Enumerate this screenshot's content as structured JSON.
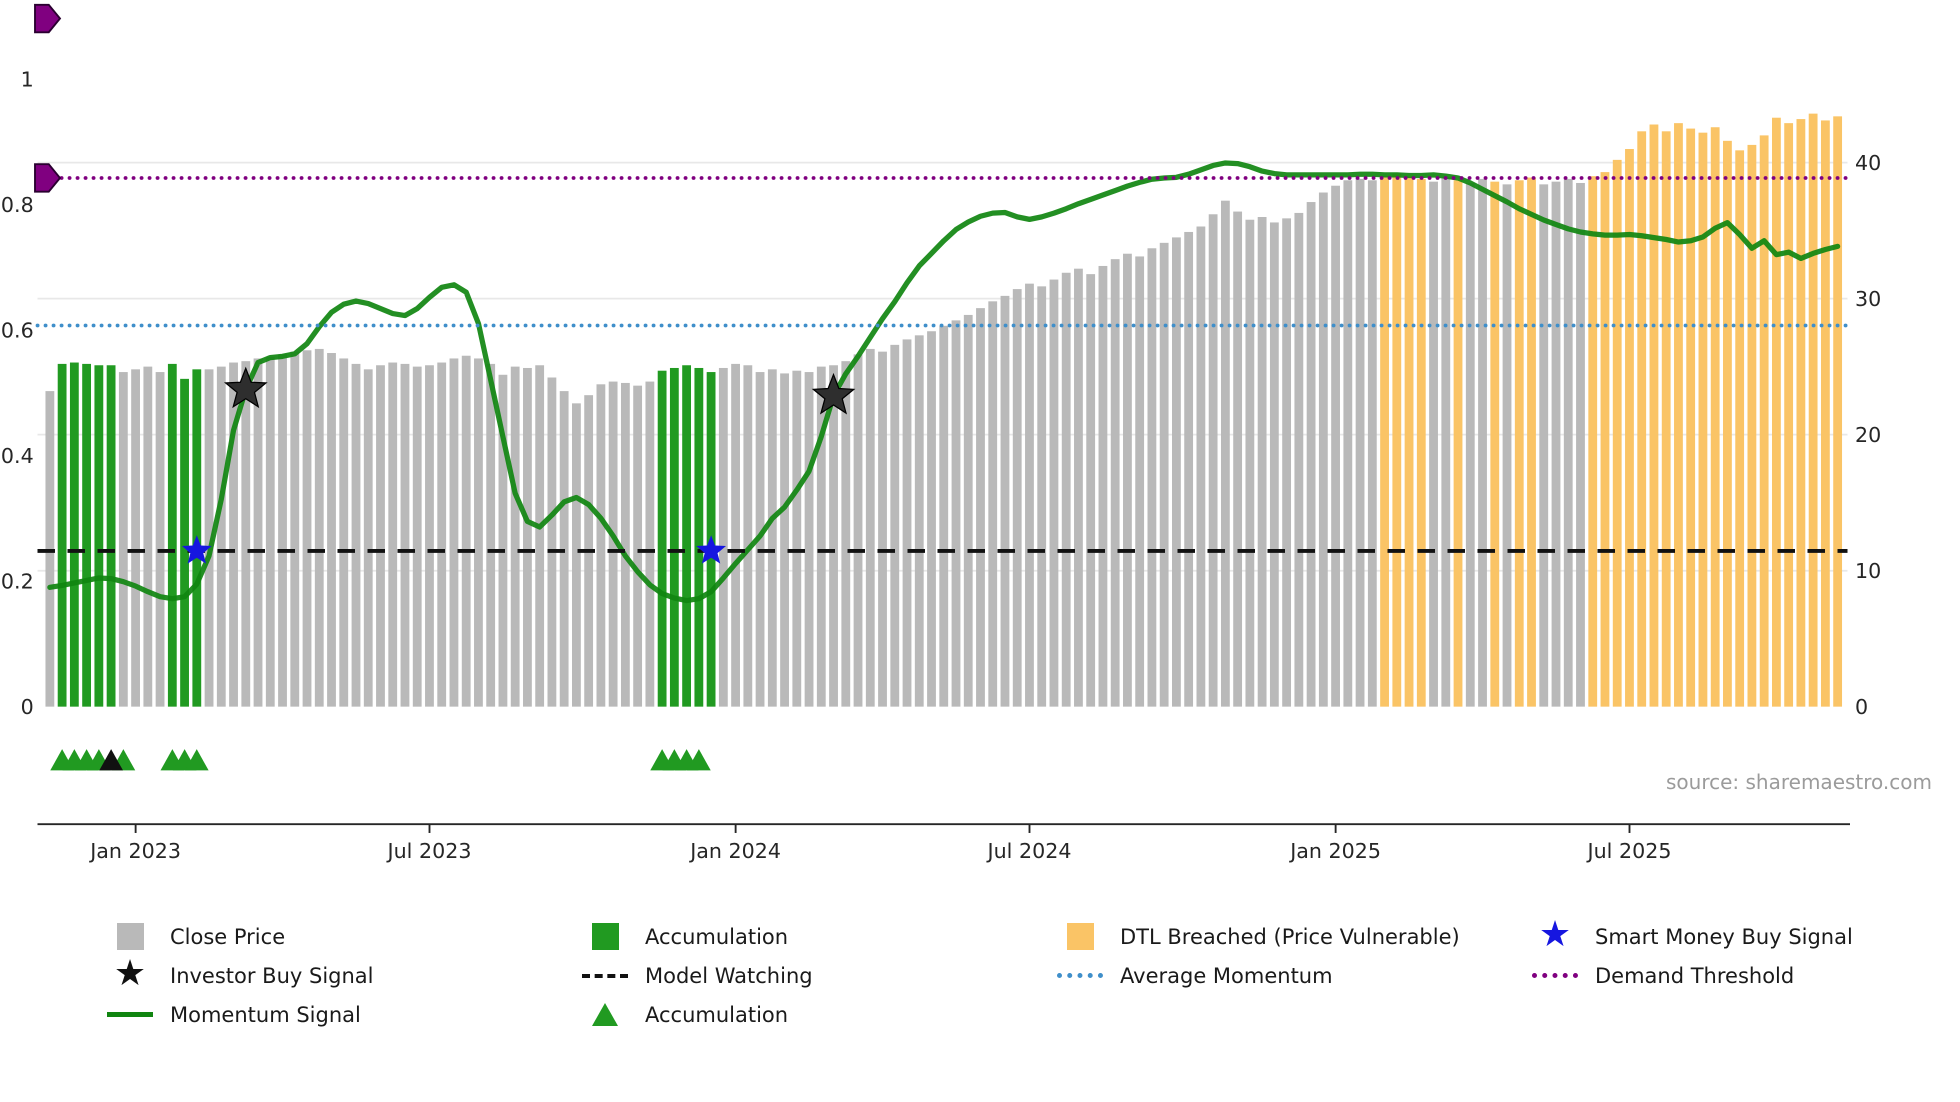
{
  "source": "source: sharemaestro.com",
  "chart_data": {
    "type": "bar",
    "title": "",
    "x_axis": {
      "ticks": [
        {
          "label": "Jan 2023",
          "index": 7
        },
        {
          "label": "Jul 2023",
          "index": 31
        },
        {
          "label": "Jan 2024",
          "index": 56
        },
        {
          "label": "Jul 2024",
          "index": 80
        },
        {
          "label": "Jan 2025",
          "index": 105
        },
        {
          "label": "Jul 2025",
          "index": 129
        }
      ]
    },
    "left_axis": {
      "range": [
        0,
        1.1
      ],
      "ticks": [
        {
          "v": 0,
          "label": "0"
        },
        {
          "v": 0.2,
          "label": "0.2"
        },
        {
          "v": 0.4,
          "label": "0.4"
        },
        {
          "v": 0.6,
          "label": "0.6"
        },
        {
          "v": 0.8,
          "label": "0.8"
        },
        {
          "v": 1,
          "label": "1"
        }
      ]
    },
    "right_axis": {
      "range": [
        0,
        46
      ],
      "ticks": [
        {
          "v": 0,
          "label": "0"
        },
        {
          "v": 10,
          "label": "10"
        },
        {
          "v": 20,
          "label": "20"
        },
        {
          "v": 30,
          "label": "30"
        },
        {
          "v": 40,
          "label": "40"
        }
      ]
    },
    "close_price": {
      "label": "Close Price",
      "values": [
        23.2,
        25.2,
        25.3,
        25.2,
        25.1,
        25.1,
        24.6,
        24.8,
        25.0,
        24.6,
        25.2,
        24.1,
        24.8,
        24.8,
        25.0,
        25.3,
        25.4,
        25.6,
        25.7,
        25.9,
        26.1,
        26.2,
        26.3,
        26.0,
        25.6,
        25.2,
        24.8,
        25.1,
        25.3,
        25.2,
        25.0,
        25.1,
        25.3,
        25.6,
        25.8,
        25.6,
        25.2,
        24.4,
        25.0,
        24.9,
        25.1,
        24.2,
        23.2,
        22.3,
        22.9,
        23.7,
        23.9,
        23.8,
        23.6,
        23.9,
        24.7,
        24.9,
        25.1,
        24.9,
        24.6,
        24.9,
        25.2,
        25.1,
        24.6,
        24.8,
        24.5,
        24.7,
        24.6,
        25.0,
        25.1,
        25.4,
        25.9,
        26.3,
        26.1,
        26.6,
        27.0,
        27.3,
        27.6,
        28.0,
        28.4,
        28.8,
        29.3,
        29.8,
        30.2,
        30.7,
        31.1,
        30.9,
        31.4,
        31.9,
        32.2,
        31.8,
        32.4,
        32.9,
        33.3,
        33.1,
        33.7,
        34.1,
        34.5,
        34.9,
        35.3,
        36.2,
        37.2,
        36.4,
        35.8,
        36.0,
        35.6,
        35.9,
        36.3,
        37.1,
        37.8,
        38.3,
        38.7,
        38.8,
        38.7,
        39.0,
        39.2,
        39.0,
        38.8,
        38.6,
        38.9,
        38.7,
        38.5,
        38.8,
        38.6,
        38.4,
        38.7,
        38.9,
        38.4,
        38.6,
        38.8,
        38.5,
        39.0,
        39.3,
        40.2,
        41.0,
        42.3,
        42.8,
        42.3,
        42.9,
        42.5,
        42.2,
        42.6,
        41.6,
        40.9,
        41.3,
        42.0,
        43.3,
        42.9,
        43.2,
        43.6,
        43.1,
        43.4
      ],
      "accumulation_indices": [
        1,
        2,
        3,
        4,
        5,
        10,
        11,
        12,
        50,
        51,
        52,
        53,
        54
      ],
      "dtl_breached_indices": [
        109,
        110,
        111,
        112,
        115,
        118,
        120,
        121,
        126,
        127,
        128,
        129,
        130,
        131,
        132,
        133,
        134,
        135,
        136,
        137,
        138,
        139,
        140,
        141,
        142,
        143,
        144,
        145,
        146
      ]
    },
    "momentum_signal": {
      "label": "Momentum Signal",
      "values": [
        0.19,
        0.193,
        0.197,
        0.201,
        0.205,
        0.204,
        0.199,
        0.192,
        0.183,
        0.175,
        0.172,
        0.175,
        0.195,
        0.24,
        0.33,
        0.44,
        0.505,
        0.548,
        0.556,
        0.558,
        0.562,
        0.578,
        0.605,
        0.628,
        0.641,
        0.646,
        0.642,
        0.634,
        0.626,
        0.623,
        0.634,
        0.652,
        0.668,
        0.672,
        0.66,
        0.61,
        0.52,
        0.43,
        0.34,
        0.295,
        0.286,
        0.305,
        0.326,
        0.333,
        0.322,
        0.3,
        0.272,
        0.24,
        0.215,
        0.194,
        0.18,
        0.173,
        0.169,
        0.172,
        0.183,
        0.205,
        0.228,
        0.25,
        0.272,
        0.3,
        0.318,
        0.345,
        0.375,
        0.43,
        0.495,
        0.53,
        0.558,
        0.588,
        0.618,
        0.645,
        0.675,
        0.702,
        0.722,
        0.742,
        0.76,
        0.772,
        0.781,
        0.786,
        0.787,
        0.78,
        0.776,
        0.78,
        0.786,
        0.793,
        0.801,
        0.808,
        0.815,
        0.822,
        0.829,
        0.835,
        0.84,
        0.842,
        0.843,
        0.848,
        0.855,
        0.862,
        0.866,
        0.865,
        0.86,
        0.853,
        0.849,
        0.847,
        0.847,
        0.847,
        0.847,
        0.847,
        0.847,
        0.848,
        0.848,
        0.847,
        0.847,
        0.846,
        0.846,
        0.847,
        0.845,
        0.842,
        0.834,
        0.824,
        0.814,
        0.804,
        0.793,
        0.784,
        0.775,
        0.768,
        0.761,
        0.756,
        0.753,
        0.751,
        0.751,
        0.752,
        0.75,
        0.747,
        0.744,
        0.74,
        0.742,
        0.748,
        0.762,
        0.771,
        0.752,
        0.73,
        0.742,
        0.72,
        0.724,
        0.714,
        0.722,
        0.728,
        0.733
      ]
    },
    "reference_lines": [
      {
        "id": "demand-threshold",
        "label": "Demand Threshold",
        "value": 0.842,
        "style": "dotted",
        "color": "#800080"
      },
      {
        "id": "average-momentum",
        "label": "Average Momentum",
        "value": 0.607,
        "style": "dotted",
        "color": "#3f8fca"
      },
      {
        "id": "model-watching",
        "label": "Model Watching",
        "value": 0.248,
        "style": "dashed",
        "color": "#111111"
      }
    ],
    "markers": {
      "investor_buy_signals": [
        {
          "index": 16,
          "value": 0.505
        },
        {
          "index": 64,
          "value": 0.495
        }
      ],
      "smart_money_buy_signals": [
        {
          "index": 12,
          "value": 0.248
        },
        {
          "index": 54,
          "value": 0.248
        }
      ],
      "accumulation_triangle_indices": [
        1,
        2,
        3,
        4,
        6,
        10,
        11,
        12,
        50,
        51,
        52,
        53
      ],
      "dark_triangle_indices": [
        5
      ],
      "demand_threshold_start_marker_value": 0.842,
      "top_left_marker_value": 1.096
    },
    "colors": {
      "close_price": "#b9b9b9",
      "accumulation": "#219a21",
      "dtl_breached": "#fac466",
      "momentum": "#108510",
      "average_momentum": "#3f8fca",
      "demand_threshold": "#800080",
      "model_watching": "#111111",
      "smart_money": "#1616e0",
      "investor": "#2e2e2e",
      "grid": "#e8e8e8",
      "axis_text": "#262626",
      "source_text": "#9b9b9b"
    }
  },
  "legend": {
    "columns": [
      {
        "items": [
          {
            "swatch": "square",
            "color": "#b9b9b9",
            "label": "Close Price"
          },
          {
            "swatch": "star",
            "color": "#111111",
            "label": "Investor Buy Signal"
          },
          {
            "swatch": "solid-line",
            "color": "#108510",
            "label": "Momentum Signal"
          }
        ]
      },
      {
        "items": [
          {
            "swatch": "square",
            "color": "#219a21",
            "label": "Accumulation"
          },
          {
            "swatch": "dashed-line",
            "color": "#111111",
            "label": "Model Watching"
          },
          {
            "swatch": "triangle",
            "color": "#219a21",
            "label": "Accumulation"
          }
        ]
      },
      {
        "items": [
          {
            "swatch": "square",
            "color": "#fac466",
            "label": "DTL Breached (Price Vulnerable)"
          },
          {
            "swatch": "dotted-line",
            "color": "#3f8fca",
            "label": "Average Momentum"
          }
        ]
      },
      {
        "items": [
          {
            "swatch": "star",
            "color": "#1616e0",
            "label": "Smart Money Buy Signal"
          },
          {
            "swatch": "dotted-line",
            "color": "#800080",
            "label": "Demand Threshold"
          }
        ]
      }
    ]
  }
}
